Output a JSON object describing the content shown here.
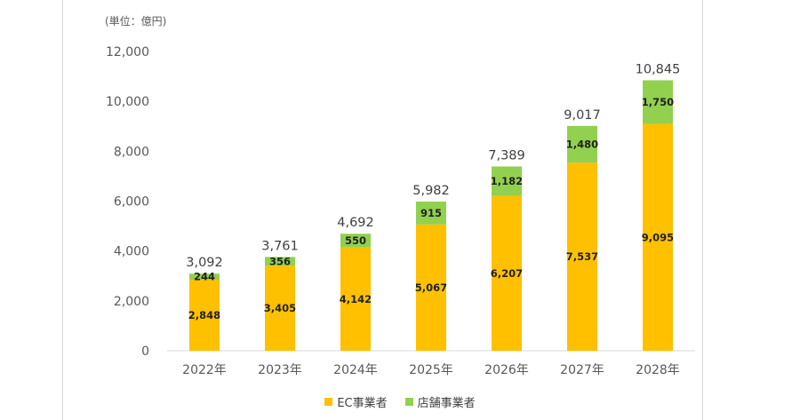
{
  "unit_label": "(単位：億円)",
  "colors": {
    "ec": "#FFC000",
    "store": "#92D050",
    "axis": "#d9d9d9",
    "text": "#595959"
  },
  "chart_data": {
    "type": "bar",
    "stacked": true,
    "categories": [
      "2022年",
      "2023年",
      "2024年",
      "2025年",
      "2026年",
      "2027年",
      "2028年"
    ],
    "series": [
      {
        "name": "EC事業者",
        "values": [
          2848,
          3405,
          4142,
          5067,
          6207,
          7537,
          9095
        ]
      },
      {
        "name": "店舗事業者",
        "values": [
          244,
          356,
          550,
          915,
          1182,
          1480,
          1750
        ]
      }
    ],
    "totals": [
      3092,
      3761,
      4692,
      5982,
      7389,
      9017,
      10845
    ],
    "ylim": [
      0,
      12000
    ],
    "yticks": [
      0,
      2000,
      4000,
      6000,
      8000,
      10000,
      12000
    ],
    "legend_position": "bottom",
    "grid": false
  }
}
